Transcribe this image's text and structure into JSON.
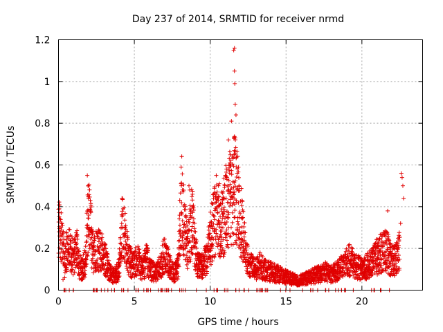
{
  "chart_data": {
    "type": "scatter",
    "title": "Day 237 of 2014, SRMTID for receiver nrmd",
    "xlabel": "GPS time / hours",
    "ylabel": "SRMTID / TECUs",
    "xlim": [
      0,
      24
    ],
    "ylim": [
      0,
      1.2
    ],
    "x_ticks": [
      0,
      5,
      10,
      15,
      20
    ],
    "x_tick_labels": [
      "0",
      "5",
      "10",
      "15",
      "20"
    ],
    "y_ticks": [
      0,
      0.2,
      0.4,
      0.6,
      0.8,
      1.0,
      1.2
    ],
    "y_tick_labels": [
      "0",
      "0.2",
      "0.4",
      "0.6",
      "0.8",
      "1",
      "1.2"
    ],
    "grid": true,
    "marker": "+",
    "color": "#e00000",
    "series": [
      {
        "name": "SRMTID",
        "profile": [
          {
            "x": 0.0,
            "y": 0.28
          },
          {
            "x": 0.2,
            "y": 0.3
          },
          {
            "x": 0.4,
            "y": 0.12
          },
          {
            "x": 0.6,
            "y": 0.22
          },
          {
            "x": 0.8,
            "y": 0.2
          },
          {
            "x": 1.0,
            "y": 0.16
          },
          {
            "x": 1.2,
            "y": 0.2
          },
          {
            "x": 1.4,
            "y": 0.12
          },
          {
            "x": 1.6,
            "y": 0.1
          },
          {
            "x": 1.8,
            "y": 0.15
          },
          {
            "x": 1.95,
            "y": 0.38
          },
          {
            "x": 2.1,
            "y": 0.3
          },
          {
            "x": 2.3,
            "y": 0.18
          },
          {
            "x": 2.6,
            "y": 0.2
          },
          {
            "x": 2.9,
            "y": 0.18
          },
          {
            "x": 3.1,
            "y": 0.15
          },
          {
            "x": 3.4,
            "y": 0.08
          },
          {
            "x": 3.7,
            "y": 0.07
          },
          {
            "x": 4.0,
            "y": 0.1
          },
          {
            "x": 4.2,
            "y": 0.3
          },
          {
            "x": 4.4,
            "y": 0.25
          },
          {
            "x": 4.6,
            "y": 0.16
          },
          {
            "x": 4.9,
            "y": 0.12
          },
          {
            "x": 5.2,
            "y": 0.15
          },
          {
            "x": 5.5,
            "y": 0.1
          },
          {
            "x": 5.8,
            "y": 0.15
          },
          {
            "x": 6.1,
            "y": 0.1
          },
          {
            "x": 6.4,
            "y": 0.08
          },
          {
            "x": 6.7,
            "y": 0.12
          },
          {
            "x": 7.0,
            "y": 0.18
          },
          {
            "x": 7.3,
            "y": 0.12
          },
          {
            "x": 7.6,
            "y": 0.08
          },
          {
            "x": 7.9,
            "y": 0.12
          },
          {
            "x": 8.1,
            "y": 0.45
          },
          {
            "x": 8.3,
            "y": 0.32
          },
          {
            "x": 8.5,
            "y": 0.2
          },
          {
            "x": 8.8,
            "y": 0.35
          },
          {
            "x": 9.0,
            "y": 0.22
          },
          {
            "x": 9.2,
            "y": 0.12
          },
          {
            "x": 9.5,
            "y": 0.12
          },
          {
            "x": 9.8,
            "y": 0.16
          },
          {
            "x": 10.1,
            "y": 0.28
          },
          {
            "x": 10.4,
            "y": 0.38
          },
          {
            "x": 10.7,
            "y": 0.3
          },
          {
            "x": 11.0,
            "y": 0.4
          },
          {
            "x": 11.3,
            "y": 0.45
          },
          {
            "x": 11.6,
            "y": 0.5
          },
          {
            "x": 11.9,
            "y": 0.4
          },
          {
            "x": 12.1,
            "y": 0.3
          },
          {
            "x": 12.4,
            "y": 0.15
          },
          {
            "x": 12.7,
            "y": 0.12
          },
          {
            "x": 13.0,
            "y": 0.1
          },
          {
            "x": 13.3,
            "y": 0.12
          },
          {
            "x": 13.6,
            "y": 0.1
          },
          {
            "x": 14.0,
            "y": 0.09
          },
          {
            "x": 14.4,
            "y": 0.08
          },
          {
            "x": 14.8,
            "y": 0.07
          },
          {
            "x": 15.2,
            "y": 0.06
          },
          {
            "x": 15.6,
            "y": 0.05
          },
          {
            "x": 16.0,
            "y": 0.05
          },
          {
            "x": 16.4,
            "y": 0.06
          },
          {
            "x": 16.8,
            "y": 0.07
          },
          {
            "x": 17.2,
            "y": 0.08
          },
          {
            "x": 17.6,
            "y": 0.09
          },
          {
            "x": 18.0,
            "y": 0.08
          },
          {
            "x": 18.4,
            "y": 0.1
          },
          {
            "x": 18.8,
            "y": 0.12
          },
          {
            "x": 19.2,
            "y": 0.15
          },
          {
            "x": 19.6,
            "y": 0.12
          },
          {
            "x": 20.0,
            "y": 0.1
          },
          {
            "x": 20.4,
            "y": 0.12
          },
          {
            "x": 20.8,
            "y": 0.15
          },
          {
            "x": 21.2,
            "y": 0.18
          },
          {
            "x": 21.6,
            "y": 0.2
          },
          {
            "x": 21.9,
            "y": 0.15
          },
          {
            "x": 22.2,
            "y": 0.14
          },
          {
            "x": 22.5,
            "y": 0.2
          }
        ],
        "spikes": [
          {
            "x": 0.05,
            "y": 0.39
          },
          {
            "x": 0.3,
            "y": 0.05
          },
          {
            "x": 1.9,
            "y": 0.55
          },
          {
            "x": 1.95,
            "y": 0.5
          },
          {
            "x": 2.1,
            "y": 0.43
          },
          {
            "x": 4.25,
            "y": 0.36
          },
          {
            "x": 8.1,
            "y": 0.5
          },
          {
            "x": 8.6,
            "y": 0.5
          },
          {
            "x": 8.65,
            "y": 0.48
          },
          {
            "x": 10.4,
            "y": 0.55
          },
          {
            "x": 10.6,
            "y": 0.51
          },
          {
            "x": 11.2,
            "y": 0.72
          },
          {
            "x": 11.3,
            "y": 0.61
          },
          {
            "x": 11.4,
            "y": 0.81
          },
          {
            "x": 11.5,
            "y": 0.63
          },
          {
            "x": 11.55,
            "y": 1.15
          },
          {
            "x": 11.6,
            "y": 1.16
          },
          {
            "x": 11.6,
            "y": 1.05
          },
          {
            "x": 11.62,
            "y": 0.99
          },
          {
            "x": 11.65,
            "y": 0.89
          },
          {
            "x": 11.7,
            "y": 0.84
          },
          {
            "x": 11.65,
            "y": 0.73
          },
          {
            "x": 11.9,
            "y": 0.5
          },
          {
            "x": 12.1,
            "y": 0.43
          },
          {
            "x": 21.7,
            "y": 0.38
          },
          {
            "x": 22.6,
            "y": 0.56
          },
          {
            "x": 22.65,
            "y": 0.54
          },
          {
            "x": 22.7,
            "y": 0.5
          },
          {
            "x": 22.75,
            "y": 0.44
          },
          {
            "x": 22.55,
            "y": 0.32
          }
        ]
      }
    ]
  }
}
